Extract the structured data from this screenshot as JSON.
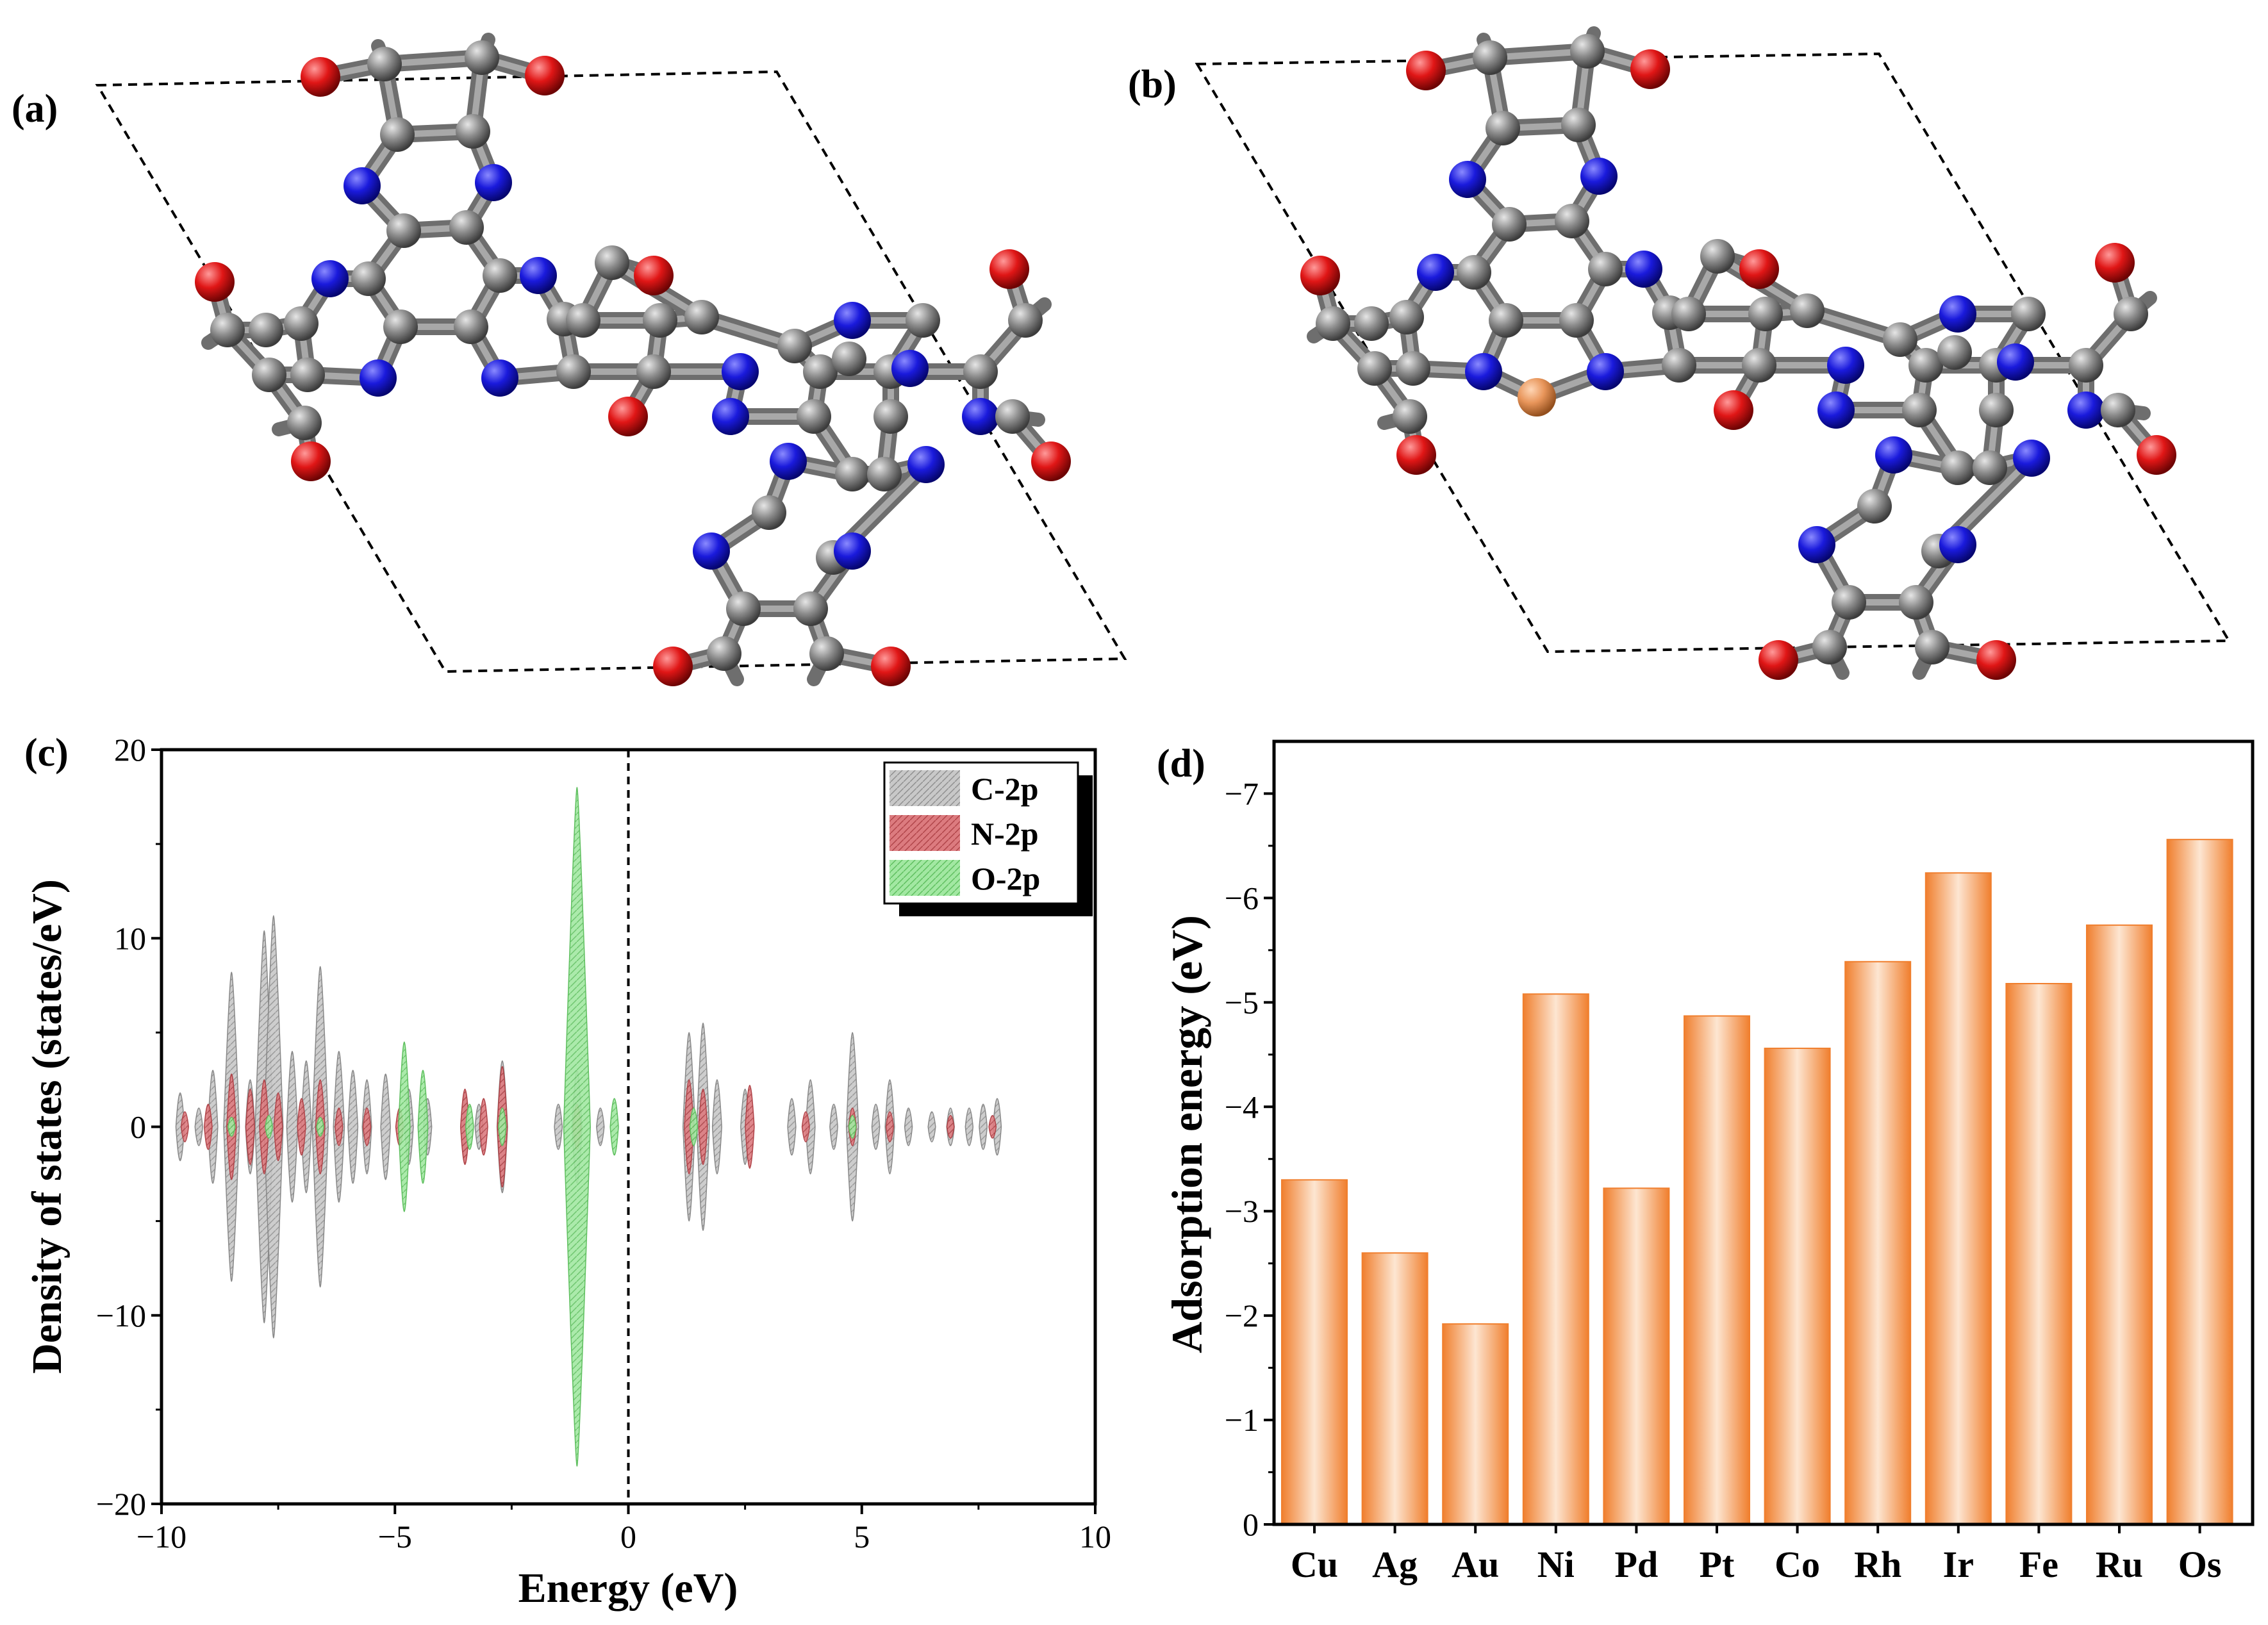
{
  "panels": {
    "a": {
      "label": "(a)"
    },
    "b": {
      "label": "(b)"
    },
    "c": {
      "label": "(c)"
    },
    "d": {
      "label": "(d)"
    }
  },
  "colors": {
    "carbon": "#8c8c8c",
    "nitrogen": "#1a1adc",
    "oxygen": "#e01616",
    "metal": "#e8955a",
    "dos_c": "#bfbfbf",
    "dos_n": "#d9666b",
    "dos_o": "#8fe08f",
    "bar": "#f07f2e"
  },
  "chart_data": [
    {
      "type": "area",
      "panel": "c",
      "xlabel": "Energy (eV)",
      "ylabel": "Density of states (states/eV)",
      "xlim": [
        -10,
        10
      ],
      "ylim": [
        -20,
        20
      ],
      "xticks": [
        -10,
        -5,
        0,
        5,
        10
      ],
      "yticks": [
        -20,
        -10,
        0,
        10,
        20
      ],
      "xtick_labels": [
        "−10",
        "−5",
        "0",
        "5",
        "10"
      ],
      "ytick_labels": [
        "−20",
        "−10",
        "0",
        "10",
        "20"
      ],
      "fermi_level": 0,
      "legend_position": "top-right",
      "series": [
        {
          "name": "C-2p",
          "peaks": [
            [
              -9.6,
              1.8
            ],
            [
              -9.2,
              1.0
            ],
            [
              -8.9,
              3.0
            ],
            [
              -8.5,
              8.2
            ],
            [
              -8.1,
              2.5
            ],
            [
              -7.8,
              10.4
            ],
            [
              -7.6,
              11.2
            ],
            [
              -7.2,
              4.0
            ],
            [
              -6.9,
              3.5
            ],
            [
              -6.6,
              8.5
            ],
            [
              -6.2,
              4.0
            ],
            [
              -5.9,
              3.0
            ],
            [
              -5.6,
              2.5
            ],
            [
              -5.2,
              2.8
            ],
            [
              -4.7,
              2.0
            ],
            [
              -4.3,
              1.5
            ],
            [
              -3.5,
              1.8
            ],
            [
              -3.2,
              1.2
            ],
            [
              -2.7,
              3.5
            ],
            [
              -1.5,
              1.2
            ],
            [
              -1.1,
              3.0
            ],
            [
              -0.6,
              1.0
            ],
            [
              1.3,
              5.0
            ],
            [
              1.6,
              5.5
            ],
            [
              1.9,
              2.5
            ],
            [
              2.5,
              2.0
            ],
            [
              3.5,
              1.5
            ],
            [
              3.9,
              2.5
            ],
            [
              4.4,
              1.2
            ],
            [
              4.8,
              5.0
            ],
            [
              5.3,
              1.2
            ],
            [
              5.6,
              2.5
            ],
            [
              6.0,
              1.0
            ],
            [
              6.5,
              0.8
            ],
            [
              6.9,
              1.0
            ],
            [
              7.3,
              1.0
            ],
            [
              7.6,
              1.2
            ],
            [
              7.9,
              1.5
            ]
          ]
        },
        {
          "name": "N-2p",
          "peaks": [
            [
              -9.5,
              0.8
            ],
            [
              -9.0,
              1.2
            ],
            [
              -8.5,
              2.8
            ],
            [
              -8.1,
              2.0
            ],
            [
              -7.8,
              2.5
            ],
            [
              -7.5,
              1.8
            ],
            [
              -7.0,
              1.5
            ],
            [
              -6.6,
              2.5
            ],
            [
              -6.2,
              1.0
            ],
            [
              -5.6,
              1.0
            ],
            [
              -4.9,
              1.0
            ],
            [
              -3.5,
              2.0
            ],
            [
              -3.1,
              1.5
            ],
            [
              -2.7,
              3.2
            ],
            [
              -1.1,
              1.2
            ],
            [
              1.3,
              2.5
            ],
            [
              1.6,
              2.0
            ],
            [
              2.6,
              2.2
            ],
            [
              3.8,
              0.8
            ],
            [
              4.8,
              1.0
            ],
            [
              5.6,
              0.8
            ],
            [
              6.9,
              0.6
            ],
            [
              7.8,
              0.6
            ]
          ]
        },
        {
          "name": "O-2p",
          "peaks": [
            [
              -8.5,
              0.5
            ],
            [
              -7.7,
              0.6
            ],
            [
              -6.6,
              0.5
            ],
            [
              -4.8,
              4.5
            ],
            [
              -4.4,
              3.0
            ],
            [
              -3.4,
              1.2
            ],
            [
              -2.7,
              1.0
            ],
            [
              -1.1,
              18.0
            ],
            [
              -0.3,
              1.5
            ],
            [
              1.4,
              1.0
            ],
            [
              4.8,
              0.6
            ]
          ]
        }
      ]
    },
    {
      "type": "bar",
      "panel": "d",
      "ylabel": "Adsorption energy (eV)",
      "ylim": [
        0,
        -7.5
      ],
      "yticks": [
        0,
        -1,
        -2,
        -3,
        -4,
        -5,
        -6,
        -7
      ],
      "ytick_labels": [
        "0",
        "−1",
        "−2",
        "−3",
        "−4",
        "−5",
        "−6",
        "−7"
      ],
      "categories": [
        "Cu",
        "Ag",
        "Au",
        "Ni",
        "Pd",
        "Pt",
        "Co",
        "Rh",
        "Ir",
        "Fe",
        "Ru",
        "Os"
      ],
      "values": [
        -3.3,
        -2.6,
        -1.92,
        -5.08,
        -3.22,
        -4.87,
        -4.56,
        -5.39,
        -6.24,
        -5.18,
        -5.74,
        -6.56
      ]
    }
  ]
}
